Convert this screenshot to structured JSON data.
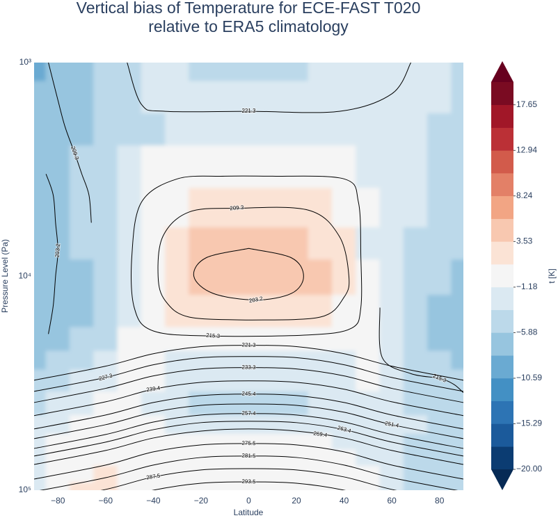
{
  "chart_data": {
    "type": "contour",
    "title": [
      "Vertical bias of Temperature for ECE-FAST T020",
      "relative to ERA5 climatology"
    ],
    "x_label": "Latitude",
    "y_label": "Pressure Level (Pa)",
    "xlim": [
      -90,
      90
    ],
    "ylim": [
      100000,
      1000
    ],
    "y_scale": "log",
    "grid": false,
    "xticks": [
      {
        "value": -80,
        "label": "−80"
      },
      {
        "value": -60,
        "label": "−60"
      },
      {
        "value": -40,
        "label": "−40"
      },
      {
        "value": -20,
        "label": "−20"
      },
      0,
      20,
      40,
      60,
      80
    ],
    "yticks": [
      {
        "value": 1000,
        "label": "10³"
      },
      {
        "value": 10000,
        "label": "10⁴"
      },
      {
        "value": 100000,
        "label": "10⁵"
      }
    ],
    "x": [
      -90,
      -80,
      -70,
      -60,
      -50,
      -40,
      -30,
      -20,
      -10,
      0,
      10,
      20,
      30,
      40,
      50,
      60,
      70,
      80,
      90
    ],
    "y": [
      1000,
      1500,
      2000,
      3000,
      5000,
      7000,
      10000,
      15000,
      20000,
      25000,
      30000,
      40000,
      50000,
      60000,
      70000,
      85000,
      100000
    ],
    "z": [
      [
        -9,
        -7,
        -6,
        -5,
        -4,
        -3,
        -3,
        -4,
        -4,
        -4,
        -4,
        -4,
        -3,
        -3,
        -2,
        -2,
        -2,
        -3,
        -4
      ],
      [
        -8,
        -7,
        -6,
        -5,
        -4,
        -3,
        -2,
        -3,
        -3,
        -3,
        -3,
        -3,
        -2,
        -2,
        -2,
        -2,
        -2,
        -3,
        -4
      ],
      [
        -7,
        -7,
        -6,
        -5,
        -4,
        -4,
        -3,
        -2,
        -2,
        -2,
        -2,
        -2,
        -2,
        -2,
        -2,
        -2,
        -3,
        -4,
        -4
      ],
      [
        -6,
        -6,
        -5,
        -5,
        -3,
        -1,
        -1,
        -0.5,
        -0.5,
        -0.5,
        -0.5,
        -0.5,
        -1,
        -1,
        -2,
        -2,
        -3,
        -4,
        -4
      ],
      [
        -6,
        -6,
        -5,
        -4,
        -3,
        -1,
        0,
        1.5,
        2,
        2,
        2,
        2,
        1.5,
        0,
        -1,
        -2,
        -3,
        -4,
        -4
      ],
      [
        -7,
        -6,
        -5,
        -4,
        -3,
        0,
        2,
        4,
        4.5,
        4.5,
        4.5,
        4.5,
        3,
        1.5,
        -1.5,
        -3,
        -4,
        -5,
        -5
      ],
      [
        -7,
        -7,
        -6,
        -4,
        -2,
        1,
        3,
        5,
        5.5,
        5.5,
        5.5,
        5,
        4,
        2,
        -1,
        -3,
        -5,
        -5,
        -6
      ],
      [
        -7,
        -7,
        -6,
        -5,
        -2,
        0,
        1.5,
        2.5,
        3,
        3,
        3,
        2.5,
        2,
        1,
        -1,
        -3,
        -5,
        -6,
        -6
      ],
      [
        -6,
        -6,
        -5,
        -4,
        -1,
        0,
        0,
        0,
        0,
        0,
        0,
        0,
        0,
        0,
        -1,
        -3,
        -5,
        -6,
        -6
      ],
      [
        -6,
        -5,
        -4,
        -3,
        -1,
        -1,
        -2,
        -2,
        -2,
        -2,
        -2,
        -2,
        -2,
        -2,
        -1,
        -2,
        -4,
        -5,
        -7
      ],
      [
        -5,
        -4,
        -3,
        -2,
        -1,
        -1,
        -2,
        -2,
        -2,
        -2,
        -2,
        -2,
        -2,
        -2,
        -1,
        -2,
        -4,
        -5,
        -5
      ],
      [
        -4,
        -3,
        -2,
        -1,
        -1,
        -2,
        -3,
        -4,
        -4,
        -4,
        -4,
        -4,
        -3,
        -2,
        -2,
        -2,
        -4,
        -4,
        -5
      ],
      [
        -3,
        -2,
        -1,
        -0.5,
        -0.5,
        -1,
        -2,
        -2.5,
        -2.5,
        -2.5,
        -2.5,
        -2.5,
        -2,
        -2,
        -2,
        -2,
        -3,
        -4,
        -5
      ],
      [
        -2,
        -1,
        0,
        0,
        0,
        0,
        0,
        0,
        0,
        0,
        0,
        0,
        -1,
        -2,
        -2,
        -3,
        -4,
        -4,
        -5
      ],
      [
        -2,
        -1,
        0,
        0.5,
        0,
        0,
        0,
        0,
        0,
        0,
        0,
        0,
        0,
        -1,
        -2,
        -3,
        -4,
        -4,
        -5
      ],
      [
        -2,
        -1,
        1,
        1.5,
        0.5,
        0,
        0,
        0,
        0,
        0,
        0,
        0,
        0,
        0,
        -1,
        -3,
        -4,
        -4,
        -5
      ],
      [
        -2,
        0,
        1.5,
        1.5,
        1,
        0,
        0,
        0,
        0,
        0,
        0,
        0,
        0,
        0,
        -1,
        -3,
        -4,
        -4,
        -5
      ]
    ],
    "colorbar": {
      "label": "t [K]",
      "levels": [
        -20,
        -17.65,
        -15.29,
        -12.94,
        -10.59,
        -8.24,
        -5.88,
        -3.53,
        -1.18,
        1.18,
        3.53,
        5.88,
        8.24,
        10.59,
        12.94,
        15.29,
        17.65,
        20
      ],
      "colors": [
        "#0b3c72",
        "#1b5a9b",
        "#2d74b4",
        "#4390c4",
        "#6aaad2",
        "#97c5df",
        "#bcd9ea",
        "#dbe9f2",
        "#f5f5f5",
        "#fbe3d5",
        "#f8c8b0",
        "#f2a584",
        "#e38067",
        "#d25b4b",
        "#bb3036",
        "#a11728",
        "#7a0b22"
      ],
      "under_color": "#062a55",
      "over_color": "#67001f",
      "ticks": [
        {
          "value": -20,
          "label": "−20.00"
        },
        {
          "value": -15.29,
          "label": "−15.29"
        },
        {
          "value": -10.59,
          "label": "−10.59"
        },
        {
          "value": -5.88,
          "label": "−5.88"
        },
        {
          "value": -1.18,
          "label": "−1.18"
        },
        3.53,
        8.24,
        12.94,
        17.65
      ]
    },
    "contours": [
      {
        "level": 221.3,
        "x": [
          -51,
          -45,
          -35,
          0,
          38,
          60,
          68
        ],
        "y": [
          1000,
          1568,
          1690,
          1690,
          1690,
          1400,
          1000
        ]
      },
      {
        "level": 209.3,
        "x": [
          -84,
          -80,
          -77,
          -73,
          -70,
          -67,
          -66
        ],
        "y": [
          1000,
          1500,
          2000,
          2650,
          3320,
          4160,
          5610
        ]
      },
      {
        "level": 203.2,
        "x": [
          -85,
          -82,
          -81,
          -80,
          -81,
          -82,
          -84
        ],
        "y": [
          3320,
          4160,
          5610,
          7570,
          10000,
          13770,
          18600
        ]
      },
      {
        "level": 209.3,
        "x": [
          0,
          30,
          40,
          42,
          38,
          25,
          -5,
          -25,
          -36,
          -38,
          -35,
          -25,
          0
        ],
        "y": [
          16000,
          15500,
          12500,
          10000,
          6500,
          4900,
          4800,
          5000,
          6500,
          10000,
          13000,
          15500,
          16000
        ]
      },
      {
        "level": 203.2,
        "x": [
          0,
          -18,
          -23,
          -15,
          3,
          18,
          23,
          18,
          0
        ],
        "y": [
          7400,
          8200,
          10000,
          12000,
          12900,
          12000,
          10000,
          8200,
          7400
        ]
      },
      {
        "level": 215.3,
        "x": [
          10,
          40,
          46,
          47,
          47,
          43,
          25,
          -15,
          -40,
          -48,
          -49,
          -45,
          -30,
          -10,
          10
        ],
        "y": [
          3400,
          3500,
          4500,
          8000,
          14000,
          17500,
          18800,
          19000,
          18000,
          14000,
          8000,
          4500,
          3500,
          3400,
          3400
        ]
      },
      {
        "level": 215.3,
        "x": [
          55,
          56,
          68,
          80,
          86,
          90
        ],
        "y": [
          14000,
          24000,
          28500,
          30000,
          32000,
          35000
        ]
      },
      {
        "level": 221.3,
        "x": [
          -90,
          -60,
          -40,
          -20,
          0,
          20,
          40,
          60,
          90
        ],
        "y": [
          30600,
          26300,
          23000,
          21300,
          21000,
          21300,
          23000,
          26300,
          30600
        ]
      },
      {
        "level": 227.3,
        "x": [
          -90,
          -60,
          -40,
          -20,
          0,
          20,
          40,
          60,
          90
        ],
        "y": [
          34500,
          29700,
          25900,
          24000,
          23700,
          24000,
          25900,
          29700,
          34500
        ]
      },
      {
        "level": 233.3,
        "x": [
          -90,
          -60,
          -40,
          -20,
          0,
          20,
          40,
          60,
          90
        ],
        "y": [
          38900,
          33400,
          29200,
          27100,
          26700,
          27100,
          29200,
          33400,
          38900
        ]
      },
      {
        "level": 239.4,
        "x": [
          -90,
          -60,
          -40,
          -20,
          0,
          20,
          40,
          60,
          90
        ],
        "y": [
          44800,
          38600,
          33700,
          31300,
          30800,
          31300,
          33700,
          38600,
          44800
        ]
      },
      {
        "level": 245.4,
        "x": [
          -90,
          -60,
          -40,
          -20,
          0,
          20,
          40,
          60,
          90
        ],
        "y": [
          51700,
          44500,
          38900,
          36100,
          35500,
          36100,
          38900,
          44500,
          51700
        ]
      },
      {
        "level": 251.4,
        "x": [
          -90,
          -60,
          -40,
          -20,
          0,
          20,
          40,
          60,
          90
        ],
        "y": [
          57400,
          49400,
          43200,
          40100,
          39500,
          40100,
          43200,
          49400,
          57400
        ]
      },
      {
        "level": 257.4,
        "x": [
          -90,
          -60,
          -40,
          -20,
          0,
          20,
          40,
          60,
          90
        ],
        "y": [
          63800,
          54900,
          48000,
          44500,
          43800,
          44500,
          48000,
          54900,
          63800
        ]
      },
      {
        "level": 263.4,
        "x": [
          -90,
          -60,
          -40,
          -20,
          0,
          20,
          40,
          60,
          90
        ],
        "y": [
          69200,
          59600,
          52100,
          48300,
          47600,
          48300,
          52100,
          59600,
          69200
        ]
      },
      {
        "level": 269.4,
        "x": [
          -90,
          -60,
          -40,
          -20,
          0,
          20,
          40,
          60,
          90
        ],
        "y": [
          75800,
          65200,
          57000,
          52900,
          51700,
          52900,
          57000,
          65200,
          75800
        ]
      },
      {
        "level": 275.5,
        "x": [
          -90,
          -60,
          -40,
          -20,
          0,
          20,
          40,
          60,
          90
        ],
        "y": [
          88700,
          76300,
          66200,
          61400,
          60500,
          61400,
          66200,
          76300,
          88700
        ]
      },
      {
        "level": 281.5,
        "x": [
          -90,
          -60,
          -40,
          -20,
          0,
          20,
          40,
          60,
          90
        ],
        "y": [
          101500,
          87400,
          76300,
          70300,
          69200,
          70300,
          76300,
          87400,
          101500
        ]
      },
      {
        "level": 287.5,
        "x": [
          -90,
          -60,
          -40,
          -20,
          0,
          20,
          40,
          60,
          90
        ],
        "y": [
          115300,
          99200,
          86700,
          80400,
          79300,
          80400,
          86700,
          99200,
          115300
        ]
      },
      {
        "level": 293.5,
        "x": [
          -90,
          -60,
          -40,
          -20,
          0,
          20,
          40,
          60,
          90
        ],
        "y": [
          133000,
          114400,
          100000,
          92800,
          91400,
          92800,
          100000,
          114400,
          133000
        ]
      }
    ]
  }
}
